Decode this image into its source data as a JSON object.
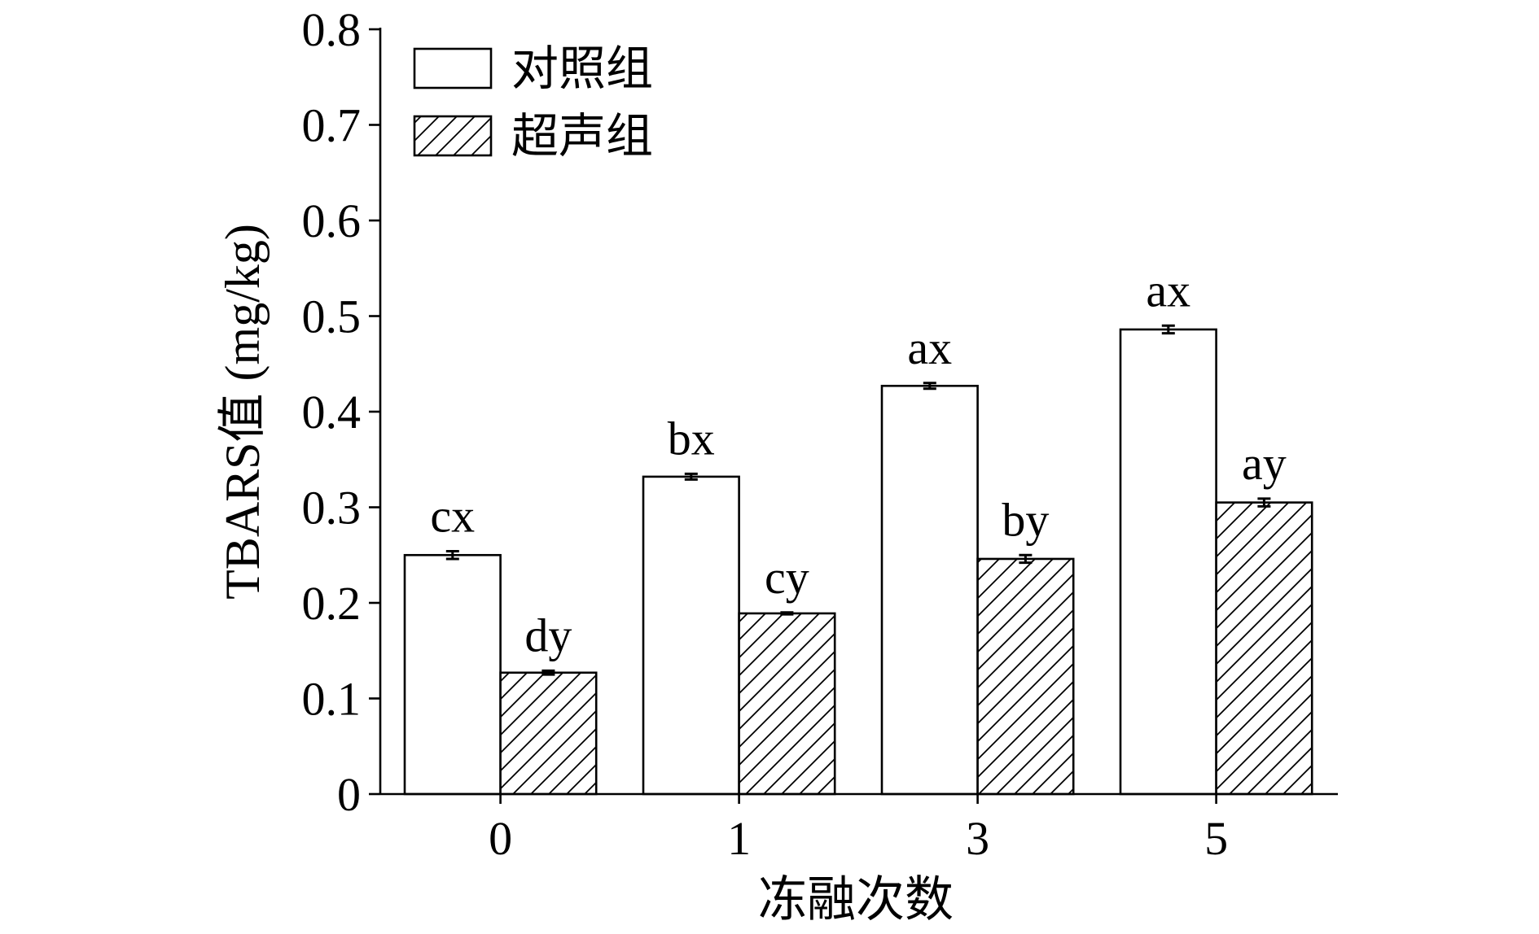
{
  "chart_data": {
    "type": "bar",
    "title": "",
    "xlabel": "冻融次数",
    "ylabel": "TBARS值 (mg/kg)",
    "categories": [
      "0",
      "1",
      "3",
      "5"
    ],
    "ylim": [
      0,
      0.8
    ],
    "yticks": [
      0,
      0.1,
      0.2,
      0.3,
      0.4,
      0.5,
      0.6,
      0.7,
      0.8
    ],
    "ytick_labels": [
      "0",
      "0.1",
      "0.2",
      "0.3",
      "0.4",
      "0.5",
      "0.6",
      "0.7",
      "0.8"
    ],
    "grid": false,
    "legend_position": "top-left",
    "series": [
      {
        "name": "对照组",
        "fill": "plain",
        "values": [
          0.25,
          0.332,
          0.427,
          0.486
        ],
        "errors": [
          0.004,
          0.003,
          0.003,
          0.004
        ],
        "labels": [
          "cx",
          "bx",
          "ax",
          "ax"
        ]
      },
      {
        "name": "超声组",
        "fill": "hatched",
        "values": [
          0.127,
          0.189,
          0.246,
          0.305
        ],
        "errors": [
          0.002,
          0.001,
          0.004,
          0.004
        ],
        "labels": [
          "dy",
          "cy",
          "by",
          "ay"
        ]
      }
    ]
  },
  "colors": {
    "outline": "#000000",
    "control_fill": "#ffffff",
    "hatch_line": "#000000",
    "background": "#ffffff"
  }
}
